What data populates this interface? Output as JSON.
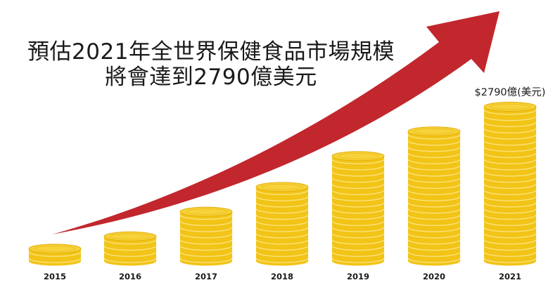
{
  "title_lines": [
    "預估2021年全世界保健食品市場規模",
    "將會達到2790億美元"
  ],
  "colors": {
    "coin_fill": "#f2c417",
    "coin_edge": "#e3ae0a",
    "coin_top": "#f7d23a",
    "coin_line": "#fbe27a",
    "arrow": "#c1272d",
    "text": "#1a1a1a"
  },
  "chart_data": {
    "type": "bar",
    "style": "coin-stack",
    "categories": [
      "2015",
      "2016",
      "2017",
      "2018",
      "2019",
      "2020",
      "2021"
    ],
    "values": [
      null,
      null,
      null,
      null,
      null,
      null,
      2790
    ],
    "coin_counts": [
      3,
      5,
      9,
      13,
      18,
      22,
      26
    ],
    "annotation": "$2790億(美元)",
    "trend": "increasing",
    "grid": false,
    "legend": "none"
  }
}
